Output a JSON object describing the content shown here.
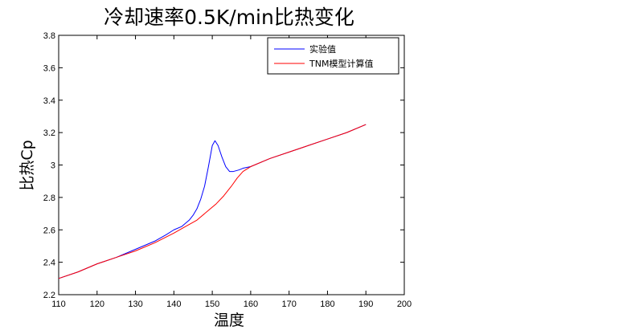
{
  "chart_data": {
    "type": "line",
    "title": "冷却速率0.5K/min比热变化",
    "xlabel": "温度",
    "ylabel": "比热Cp",
    "xlim": [
      110,
      200
    ],
    "ylim": [
      2.2,
      3.8
    ],
    "xticks": [
      110,
      120,
      130,
      140,
      150,
      160,
      170,
      180,
      190,
      200
    ],
    "yticks": [
      2.2,
      2.4,
      2.6,
      2.8,
      3.0,
      3.2,
      3.4,
      3.6,
      3.8
    ],
    "xtick_labels": [
      "110",
      "120",
      "130",
      "140",
      "150",
      "160",
      "170",
      "180",
      "190",
      "200"
    ],
    "ytick_labels": [
      "2.2",
      "2.4",
      "2.6",
      "2.8",
      "3",
      "3.2",
      "3.4",
      "3.6",
      "3.8"
    ],
    "grid": false,
    "legend_position": "top-right",
    "series": [
      {
        "name": "实验值",
        "color": "#0000ff",
        "points": [
          [
            110,
            2.3
          ],
          [
            115,
            2.34
          ],
          [
            120,
            2.39
          ],
          [
            125,
            2.43
          ],
          [
            130,
            2.48
          ],
          [
            135,
            2.53
          ],
          [
            138,
            2.57
          ],
          [
            140,
            2.6
          ],
          [
            142,
            2.62
          ],
          [
            144,
            2.66
          ],
          [
            145,
            2.69
          ],
          [
            146,
            2.73
          ],
          [
            147,
            2.79
          ],
          [
            148,
            2.87
          ],
          [
            149,
            2.99
          ],
          [
            150,
            3.12
          ],
          [
            150.7,
            3.15
          ],
          [
            151.5,
            3.12
          ],
          [
            152.5,
            3.05
          ],
          [
            153.5,
            2.99
          ],
          [
            154.5,
            2.96
          ],
          [
            155.5,
            2.96
          ],
          [
            157,
            2.97
          ],
          [
            158,
            2.98
          ],
          [
            160,
            2.99
          ],
          [
            165,
            3.04
          ],
          [
            170,
            3.08
          ],
          [
            175,
            3.12
          ],
          [
            180,
            3.16
          ],
          [
            185,
            3.2
          ],
          [
            190,
            3.25
          ]
        ]
      },
      {
        "name": "TNM模型计算值",
        "color": "#ff0000",
        "points": [
          [
            110,
            2.3
          ],
          [
            115,
            2.34
          ],
          [
            120,
            2.39
          ],
          [
            125,
            2.43
          ],
          [
            130,
            2.47
          ],
          [
            135,
            2.52
          ],
          [
            140,
            2.58
          ],
          [
            143,
            2.62
          ],
          [
            146,
            2.66
          ],
          [
            149,
            2.72
          ],
          [
            151,
            2.76
          ],
          [
            153,
            2.81
          ],
          [
            155,
            2.87
          ],
          [
            156.5,
            2.92
          ],
          [
            158,
            2.96
          ],
          [
            160,
            2.99
          ],
          [
            165,
            3.04
          ],
          [
            170,
            3.08
          ],
          [
            175,
            3.12
          ],
          [
            180,
            3.16
          ],
          [
            185,
            3.2
          ],
          [
            190,
            3.25
          ]
        ]
      }
    ]
  }
}
